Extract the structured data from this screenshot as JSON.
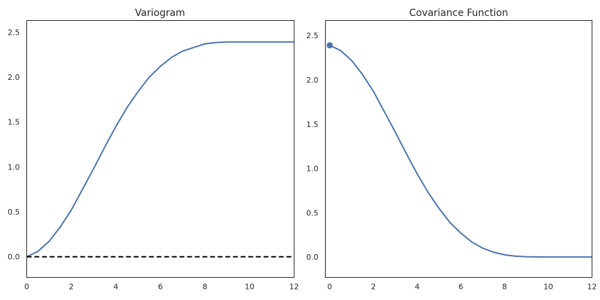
{
  "chart_data": [
    {
      "type": "line",
      "title": "Variogram",
      "xlabel": "",
      "ylabel": "",
      "xlim": [
        0,
        12
      ],
      "ylim": [
        -0.23,
        2.63
      ],
      "xticks": [
        "0",
        "2",
        "4",
        "6",
        "8",
        "10",
        "12"
      ],
      "yticks": [
        "0.0",
        "0.5",
        "1.0",
        "1.5",
        "2.0",
        "2.5"
      ],
      "grid": false,
      "series": [
        {
          "color": "#4c72b0",
          "style": "solid",
          "x": [
            0,
            0.5,
            1,
            1.5,
            2,
            2.5,
            3,
            3.5,
            4,
            4.5,
            5,
            5.5,
            6,
            6.5,
            7,
            7.5,
            8,
            8.5,
            9,
            9.5,
            10,
            10.5,
            11,
            11.5,
            12
          ],
          "y": [
            0,
            0.06,
            0.17,
            0.33,
            0.52,
            0.75,
            0.98,
            1.22,
            1.45,
            1.66,
            1.84,
            2.0,
            2.12,
            2.22,
            2.29,
            2.33,
            2.37,
            2.385,
            2.39,
            2.39,
            2.39,
            2.39,
            2.39,
            2.39,
            2.39
          ]
        },
        {
          "color": "#000000",
          "style": "dashed",
          "x": [
            0,
            12
          ],
          "y": [
            0,
            0
          ]
        }
      ]
    },
    {
      "type": "line",
      "title": "Covariance Function",
      "xlabel": "",
      "ylabel": "",
      "xlim": [
        -0.2,
        12
      ],
      "ylim": [
        -0.23,
        2.67
      ],
      "xticks": [
        "0",
        "2",
        "4",
        "6",
        "8",
        "10",
        "12"
      ],
      "yticks": [
        "0.0",
        "0.5",
        "1.0",
        "1.5",
        "2.0",
        "2.5"
      ],
      "grid": false,
      "series": [
        {
          "color": "#4c72b0",
          "style": "solid",
          "x": [
            0,
            0.5,
            1,
            1.5,
            2,
            2.5,
            3,
            3.5,
            4,
            4.5,
            5,
            5.5,
            6,
            6.5,
            7,
            7.5,
            8,
            8.5,
            9,
            9.5,
            10,
            10.5,
            11,
            11.5,
            12
          ],
          "y": [
            2.39,
            2.33,
            2.22,
            2.06,
            1.87,
            1.64,
            1.41,
            1.17,
            0.94,
            0.73,
            0.55,
            0.39,
            0.27,
            0.17,
            0.1,
            0.055,
            0.025,
            0.01,
            0.004,
            0.001,
            0,
            0,
            0,
            0,
            0
          ]
        }
      ],
      "markers": [
        {
          "x": 0,
          "y": 2.39,
          "color": "#4c72b0"
        }
      ]
    }
  ]
}
